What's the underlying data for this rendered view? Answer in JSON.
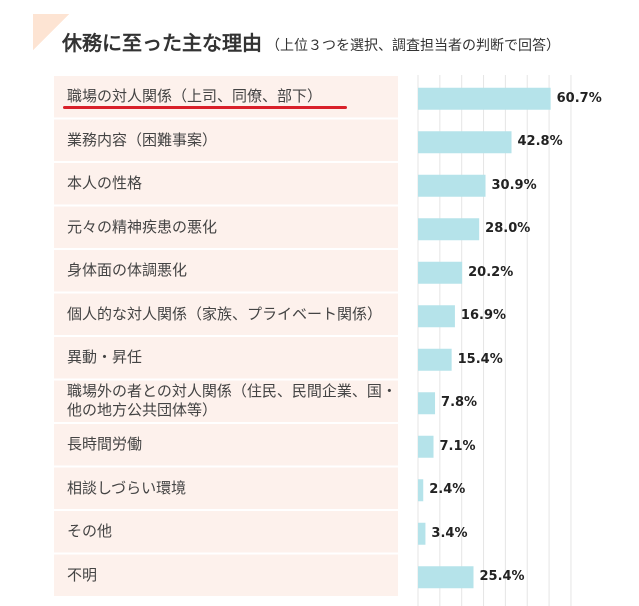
{
  "header": {
    "title": "休務に至った主な理由",
    "subtitle": "（上位３つを選択、調査担当者の判断で回答）"
  },
  "colors": {
    "bar": "#b5e3ea",
    "row_bg": "#fdf1ec",
    "highlight": "#d9202a",
    "grid": "#e5e5e5"
  },
  "chart_data": {
    "type": "bar",
    "orientation": "horizontal",
    "title": "休務に至った主な理由",
    "categories": [
      "職場の対人関係（上司、同僚、部下）",
      "業務内容（困難事案）",
      "本人の性格",
      "元々の精神疾患の悪化",
      "身体面の体調悪化",
      "個人的な対人関係（家族、プライベート関係）",
      "異動・昇任",
      "職場外の者との対人関係（住民、民間企業、国・他の地方公共団体等）",
      "長時間労働",
      "相談しづらい環境",
      "その他",
      "不明"
    ],
    "values": [
      60.7,
      42.8,
      30.9,
      28.0,
      20.2,
      16.9,
      15.4,
      7.8,
      7.1,
      2.4,
      3.4,
      25.4
    ],
    "value_labels": [
      "60.7%",
      "42.8%",
      "30.9%",
      "28.0%",
      "20.2%",
      "16.9%",
      "15.4%",
      "7.8%",
      "7.1%",
      "2.4%",
      "3.4%",
      "25.4%"
    ],
    "xlim": [
      0,
      70
    ],
    "grid": true,
    "highlighted_category": "職場の対人関係（上司、同僚、部下）"
  }
}
